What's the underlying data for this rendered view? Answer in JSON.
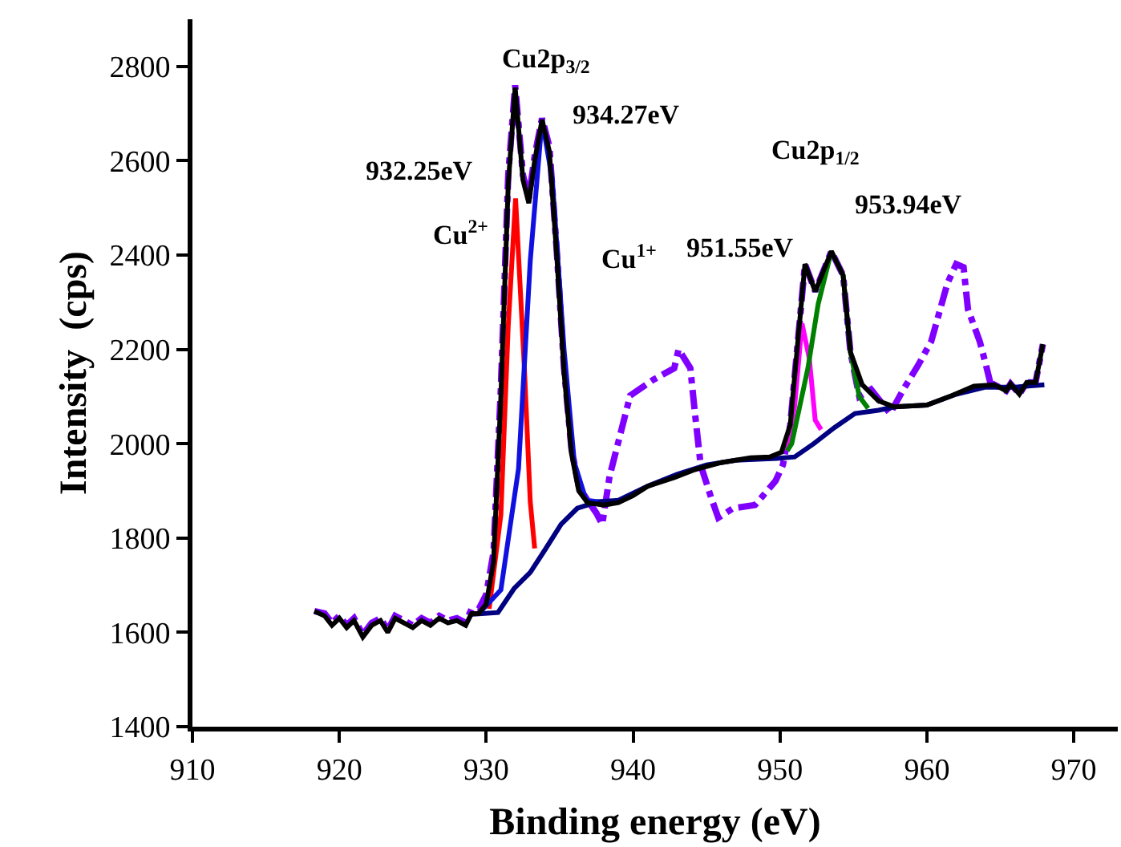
{
  "chart_data": {
    "type": "line",
    "xlabel": "Binding energy (eV)",
    "ylabel": "Intensity  (cps)",
    "xlim": [
      910,
      973
    ],
    "xticks": [
      910,
      920,
      930,
      940,
      950,
      960,
      970
    ],
    "ylim": [
      1400,
      2900
    ],
    "yticks": [
      1400,
      1600,
      1800,
      2000,
      2200,
      2400,
      2600,
      2800
    ],
    "marker": "none",
    "series": [
      {
        "color": "#8000ff",
        "line_style": "dashdot",
        "x": [
          918.3,
          919,
          919.5,
          920,
          920.5,
          921,
          921.6,
          922.2,
          922.8,
          923.3,
          923.8,
          924.4,
          925,
          925.6,
          926.2,
          926.8,
          927.4,
          928,
          928.6,
          929,
          929.5,
          930,
          930.5,
          931,
          931.5,
          931.97,
          932.5,
          932.9,
          933.3,
          933.8,
          934.3,
          934.8,
          935.3,
          935.8,
          936.3,
          936.9,
          937.5,
          937.9,
          938.4,
          939.8,
          941.4,
          942.8,
          943.1,
          943.9,
          944.2,
          944.6,
          945.3,
          945.8,
          946.8,
          948.3,
          949.7,
          950.2,
          950.7,
          951.7,
          952.4,
          953.5,
          954.3,
          954.8,
          955.4,
          956.2,
          957.5,
          958.4,
          959.4,
          960.3,
          961.4,
          962.0,
          962.5,
          962.8,
          963.6,
          964.0,
          964.4,
          964.6,
          965.4,
          965.7,
          966.3,
          966.8,
          967.4,
          967.9
        ],
        "values": [
          1645,
          1640,
          1620,
          1635,
          1615,
          1630,
          1595,
          1620,
          1630,
          1605,
          1635,
          1625,
          1615,
          1630,
          1620,
          1635,
          1625,
          1630,
          1620,
          1650,
          1650,
          1680,
          1770,
          2120,
          2570,
          2760,
          2570,
          2520,
          2610,
          2690,
          2630,
          2410,
          2160,
          1990,
          1910,
          1880,
          1853,
          1829,
          1931,
          2102,
          2136,
          2160,
          2200,
          2160,
          2068,
          1955,
          1887,
          1843,
          1863,
          1870,
          1921,
          1955,
          2040,
          2381,
          2323,
          2408,
          2357,
          2194,
          2100,
          2115,
          2064,
          2115,
          2166,
          2217,
          2340,
          2381,
          2374,
          2285,
          2217,
          2170,
          2119,
          2125,
          2112,
          2127,
          2105,
          2130,
          2130,
          2211
        ]
      },
      {
        "color": "#000080",
        "line_style": "solid",
        "x": [
          928.9,
          930.8,
          931.9,
          933.0,
          934.0,
          935.1,
          936.2,
          937.6,
          939,
          941,
          943,
          945,
          947,
          949.8,
          951,
          952.3,
          953.7,
          955.1,
          956.7,
          957.8,
          960,
          962,
          964,
          966,
          968
        ],
        "values": [
          1638,
          1642,
          1693,
          1727,
          1775,
          1829,
          1863,
          1877,
          1880,
          1910,
          1935,
          1955,
          1965,
          1969,
          1972,
          2000,
          2034,
          2064,
          2071,
          2078,
          2082,
          2105,
          2120,
          2120,
          2125
        ]
      },
      {
        "color": "#ff0000",
        "line_style": "solid",
        "x": [
          930.2,
          931,
          931.5,
          932,
          932.6,
          933.0,
          933.3
        ],
        "values": [
          1650,
          1850,
          2250,
          2520,
          2160,
          1877,
          1778
        ]
      },
      {
        "color": "#1010e0",
        "line_style": "solid",
        "x": [
          929.5,
          931,
          932.2,
          933,
          933.8,
          934.5,
          935.3,
          936,
          936.8,
          937.6
        ],
        "values": [
          1640,
          1690,
          1947,
          2388,
          2687,
          2560,
          2200,
          1960,
          1880,
          1877
        ]
      },
      {
        "color": "#ff00ff",
        "line_style": "solid",
        "x": [
          950.5,
          951,
          951.5,
          952,
          952.4,
          952.8
        ],
        "values": [
          1985,
          2080,
          2255,
          2180,
          2050,
          2030
        ]
      },
      {
        "color": "#008000",
        "line_style": "solid",
        "x": [
          950.5,
          950.8,
          951.9,
          952.6,
          953.5,
          954.3,
          954.8,
          955.4,
          956
        ],
        "values": [
          1985,
          2000,
          2160,
          2296,
          2408,
          2357,
          2194,
          2100,
          2075
        ]
      },
      {
        "color": "#000000",
        "line_style": "solid",
        "x": [
          918.3,
          919,
          919.5,
          920,
          920.5,
          921,
          921.6,
          922.2,
          922.8,
          923.3,
          923.8,
          924.4,
          925,
          925.6,
          926.2,
          926.8,
          927.4,
          928,
          928.6,
          929,
          929.5,
          930,
          930.5,
          931,
          931.5,
          931.97,
          932.5,
          932.9,
          933.3,
          933.8,
          934.3,
          934.8,
          935.3,
          935.8,
          936.3,
          936.9,
          938,
          939,
          940,
          941,
          942.8,
          944.2,
          946,
          948,
          949.3,
          950.1,
          950.7,
          951.7,
          952.4,
          953.5,
          954.3,
          954.8,
          955.6,
          956.7,
          957.8,
          960,
          961.7,
          963.2,
          964.6,
          965.4,
          965.7,
          966.3,
          966.8,
          967.4,
          967.9
        ],
        "values": [
          1645,
          1635,
          1615,
          1630,
          1610,
          1625,
          1590,
          1615,
          1625,
          1600,
          1630,
          1620,
          1610,
          1625,
          1615,
          1630,
          1620,
          1625,
          1615,
          1640,
          1640,
          1660,
          1750,
          2100,
          2550,
          2755,
          2560,
          2510,
          2600,
          2687,
          2620,
          2400,
          2150,
          1980,
          1900,
          1875,
          1870,
          1875,
          1890,
          1910,
          1928,
          1945,
          1960,
          1970,
          1972,
          1982,
          2040,
          2381,
          2323,
          2408,
          2357,
          2194,
          2125,
          2091,
          2078,
          2082,
          2102,
          2122,
          2125,
          2112,
          2127,
          2105,
          2130,
          2130,
          2211
        ]
      }
    ],
    "annotations": [
      "932.25eV",
      "934.27eV",
      "Cu2p$_{3/2}$",
      "Cu$^{2+}$",
      "Cu$^{1+}$",
      "951.55eV",
      "Cu2p$_{1/2}$",
      "953.94eV"
    ]
  }
}
